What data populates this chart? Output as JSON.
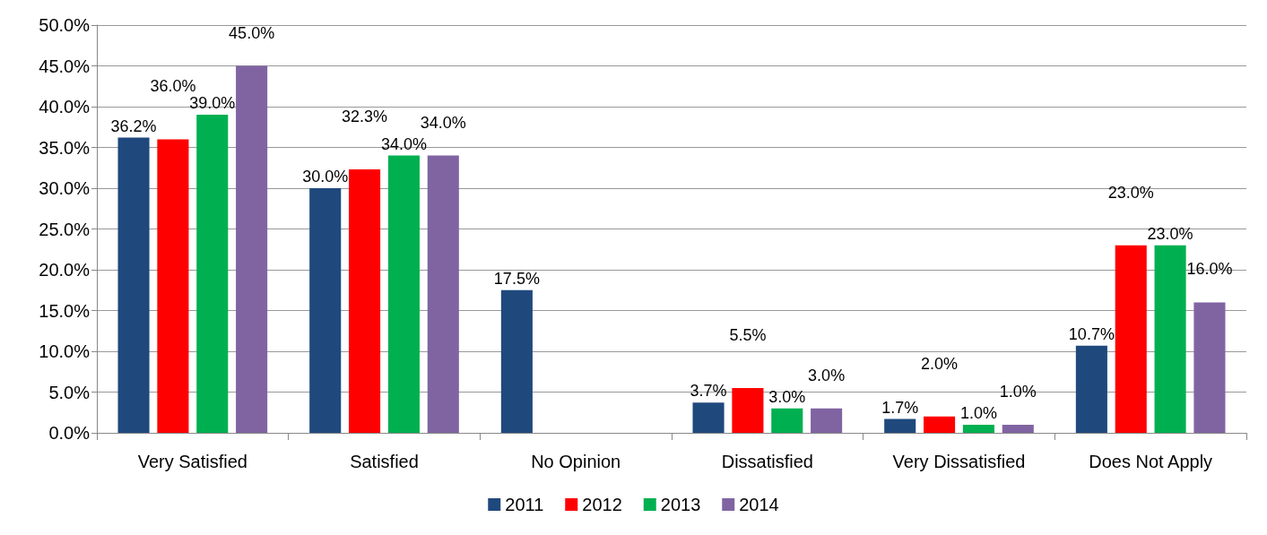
{
  "chart_data": {
    "type": "bar",
    "categories": [
      "Very Satisfied",
      "Satisfied",
      "No Opinion",
      "Dissatisfied",
      "Very Dissatisfied",
      "Does Not Apply"
    ],
    "series": [
      {
        "name": "2011",
        "color": "#1f497d",
        "values": [
          36.2,
          30.0,
          17.5,
          3.7,
          1.7,
          10.7
        ],
        "value_labels": [
          "36.2%",
          "30.0%",
          "17.5%",
          "3.7%",
          "1.7%",
          "10.7%"
        ]
      },
      {
        "name": "2012",
        "color": "#ff0000",
        "values": [
          36.0,
          32.3,
          null,
          5.5,
          2.0,
          23.0
        ],
        "value_labels": [
          "36.0%",
          "32.3%",
          null,
          "5.5%",
          "2.0%",
          "23.0%"
        ]
      },
      {
        "name": "2013",
        "color": "#00b050",
        "values": [
          39.0,
          34.0,
          null,
          3.0,
          1.0,
          23.0
        ],
        "value_labels": [
          "39.0%",
          "34.0%",
          null,
          "3.0%",
          "1.0%",
          "23.0%"
        ]
      },
      {
        "name": "2014",
        "color": "#8064a2",
        "values": [
          45.0,
          34.0,
          null,
          3.0,
          1.0,
          16.0
        ],
        "value_labels": [
          "45.0%",
          "34.0%",
          null,
          "3.0%",
          "1.0%",
          "16.0%"
        ]
      }
    ],
    "ylim": [
      0,
      50
    ],
    "yticks": [
      {
        "value": 0,
        "label": "0.0%"
      },
      {
        "value": 5,
        "label": "5.0%"
      },
      {
        "value": 10,
        "label": "10.0%"
      },
      {
        "value": 15,
        "label": "15.0%"
      },
      {
        "value": 20,
        "label": "20.0%"
      },
      {
        "value": 25,
        "label": "25.0%"
      },
      {
        "value": 30,
        "label": "30.0%"
      },
      {
        "value": 35,
        "label": "35.0%"
      },
      {
        "value": 40,
        "label": "40.0%"
      },
      {
        "value": 45,
        "label": "45.0%"
      },
      {
        "value": 50,
        "label": "50.0%"
      }
    ],
    "grid": "y",
    "legend": "bottom"
  }
}
